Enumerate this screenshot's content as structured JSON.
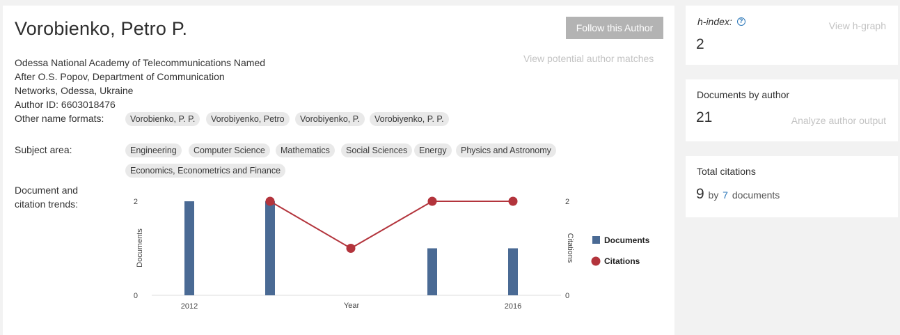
{
  "author": {
    "name": "Vorobienko, Petro P.",
    "follow_label": "Follow this Author",
    "potential_matches_label": "View potential author matches",
    "affiliation_lines": [
      "Odessa National Academy of Telecommunications Named",
      "After O.S. Popov, Department of Communication",
      "Networks, Odessa, Ukraine"
    ],
    "author_id_text": "Author ID: 6603018476",
    "other_names_label": "Other name formats:",
    "other_names": [
      "Vorobienko, P. P.",
      "Vorobiyenko, Petro",
      "Vorobiyenko, P.",
      "Vorobiyenko, P. P."
    ],
    "subject_label": "Subject area:",
    "subjects": [
      "Engineering",
      "Computer Science",
      "Mathematics",
      "Social Sciences",
      "Energy",
      "Physics and Astronomy",
      "Economics, Econometrics and Finance"
    ],
    "trends_label_line1": "Document and",
    "trends_label_line2": "citation trends:"
  },
  "chart_data": {
    "type": "bar",
    "categories": [
      "2012",
      "2013",
      "2014",
      "2015",
      "2016"
    ],
    "x_tick_labels": [
      "2012",
      "",
      "",
      "",
      "2016"
    ],
    "xlabel": "Year",
    "ylabel_left": "Documents",
    "ylabel_right": "Citations",
    "ylim_left": [
      0,
      2
    ],
    "ylim_right": [
      0,
      2
    ],
    "left_ticks": [
      "0",
      "2"
    ],
    "right_ticks": [
      "0",
      "2"
    ],
    "series": [
      {
        "name": "Documents",
        "type": "bar",
        "values": [
          2,
          2,
          0,
          1,
          1
        ],
        "color": "#4a6a94"
      },
      {
        "name": "Citations",
        "type": "line",
        "points": [
          [
            1,
            2
          ],
          [
            2,
            1
          ],
          [
            3,
            2
          ],
          [
            4,
            2
          ]
        ],
        "color": "#b3343c"
      }
    ],
    "legend_position": "right"
  },
  "sidebar": {
    "hindex_label": "h-index:",
    "hindex_help_icon": "question-circle-icon",
    "hindex_value": "2",
    "hgraph_label": "View h-graph",
    "documents_label": "Documents by author",
    "documents_value": "21",
    "analyze_label": "Analyze author output",
    "citations_label": "Total citations",
    "citations_value": "9",
    "citations_by": "by",
    "citations_docs_count": "7",
    "citations_docs_label": "documents"
  },
  "colors": {
    "link_blue": "#2a76b8",
    "muted_link": "#c3c3c3",
    "button_gray": "#b3b3b3",
    "chip_bg": "#e9e9e9"
  }
}
